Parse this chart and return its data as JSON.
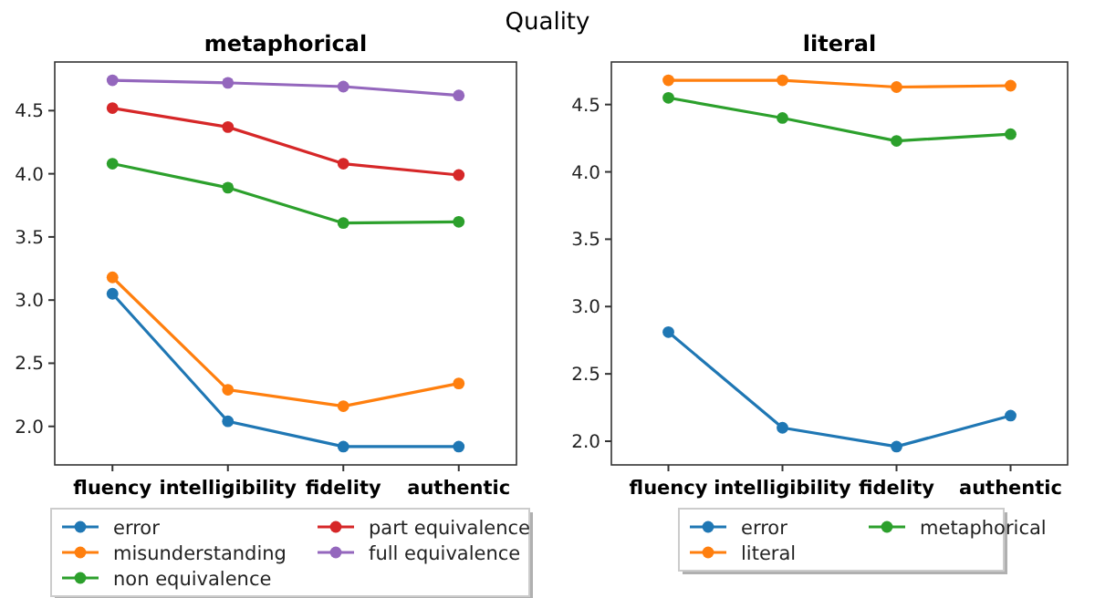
{
  "chart_data": [
    {
      "type": "line",
      "title": "metaphorical",
      "annotations": [
        "Quality"
      ],
      "categories": [
        "fluency",
        "intelligibility",
        "fidelity",
        "authentic"
      ],
      "ylim": [
        1.695,
        4.885
      ],
      "yticks": [
        {
          "value": 2,
          "label": "2.0"
        },
        {
          "value": 2.5,
          "label": "2.5"
        },
        {
          "value": 3,
          "label": "3.0"
        },
        {
          "value": 3.5,
          "label": "3.5"
        },
        {
          "value": 4,
          "label": "4.0"
        },
        {
          "value": 4.5,
          "label": "4.5"
        }
      ],
      "marker": "circle",
      "legend": "bottom",
      "grid": false,
      "series": [
        {
          "name": "error",
          "color": "#1f77b4",
          "values": [
            3.05,
            2.04,
            1.84,
            1.84
          ]
        },
        {
          "name": "misunderstanding",
          "color": "#ff7f0e",
          "values": [
            3.18,
            2.29,
            2.16,
            2.34
          ]
        },
        {
          "name": "non equivalence",
          "color": "#2ca02c",
          "values": [
            4.08,
            3.89,
            3.61,
            3.62
          ]
        },
        {
          "name": "part equivalence",
          "color": "#d62728",
          "values": [
            4.52,
            4.37,
            4.08,
            3.99
          ]
        },
        {
          "name": "full equivalence",
          "color": "#9467bd",
          "values": [
            4.74,
            4.72,
            4.69,
            4.62
          ]
        }
      ]
    },
    {
      "type": "line",
      "title": "literal",
      "categories": [
        "fluency",
        "intelligibility",
        "fidelity",
        "authentic"
      ],
      "ylim": [
        1.824,
        4.816
      ],
      "yticks": [
        {
          "value": 2,
          "label": "2.0"
        },
        {
          "value": 2.5,
          "label": "2.5"
        },
        {
          "value": 3,
          "label": "3.0"
        },
        {
          "value": 3.5,
          "label": "3.5"
        },
        {
          "value": 4,
          "label": "4.0"
        },
        {
          "value": 4.5,
          "label": "4.5"
        }
      ],
      "marker": "circle",
      "legend": "bottom",
      "grid": false,
      "series": [
        {
          "name": "error",
          "color": "#1f77b4",
          "values": [
            2.81,
            2.1,
            1.96,
            2.19
          ]
        },
        {
          "name": "literal",
          "color": "#ff7f0e",
          "values": [
            4.68,
            4.68,
            4.63,
            4.64
          ]
        },
        {
          "name": "metaphorical",
          "color": "#2ca02c",
          "values": [
            4.55,
            4.4,
            4.23,
            4.28
          ]
        }
      ]
    }
  ]
}
